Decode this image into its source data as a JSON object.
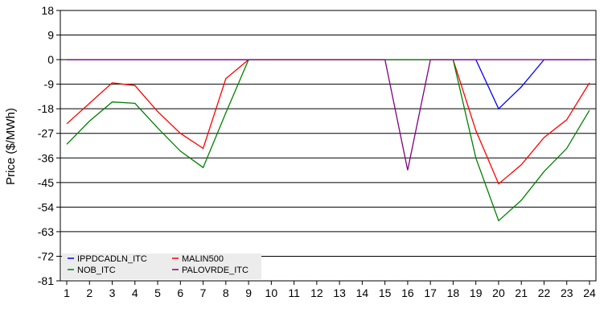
{
  "chart_data": {
    "type": "line",
    "ylabel": "Price ($/MWh)",
    "xlabel": "",
    "x": [
      1,
      2,
      3,
      4,
      5,
      6,
      7,
      8,
      9,
      10,
      11,
      12,
      13,
      14,
      15,
      16,
      17,
      18,
      19,
      20,
      21,
      22,
      23,
      24
    ],
    "xticks": [
      "1",
      "2",
      "3",
      "4",
      "5",
      "6",
      "7",
      "8",
      "9",
      "10",
      "11",
      "12",
      "13",
      "14",
      "15",
      "16",
      "17",
      "18",
      "19",
      "20",
      "21",
      "22",
      "23",
      "24"
    ],
    "ylim": [
      -81,
      18
    ],
    "yticks": [
      18,
      9,
      0,
      -9,
      -18,
      -27,
      -36,
      -45,
      -54,
      -63,
      -72,
      -81
    ],
    "ytick_labels": [
      "18",
      "9",
      "0",
      "-9",
      "-18",
      "-27",
      "-36",
      "-45",
      "-54",
      "-63",
      "-72",
      "-81"
    ],
    "grid": "horizontal",
    "legend_position": "bottom-left",
    "series": [
      {
        "name": "IPPDCADLN_ITC",
        "color": "#0000ff",
        "values": [
          0,
          0,
          0,
          0,
          0,
          0,
          0,
          0,
          0,
          0,
          0,
          0,
          0,
          0,
          0,
          0,
          0,
          0,
          0,
          -18,
          -10,
          0,
          0,
          0
        ]
      },
      {
        "name": "MALIN500",
        "color": "#ff0000",
        "values": [
          -23.5,
          -16,
          -8.5,
          -9.5,
          -19,
          -27,
          -32.5,
          -7,
          0,
          0,
          0,
          0,
          0,
          0,
          0,
          0,
          0,
          0,
          -26,
          -45.5,
          -38.5,
          -28.5,
          -22,
          -8.5
        ]
      },
      {
        "name": "NOB_ITC",
        "color": "#008000",
        "values": [
          -31,
          -22.5,
          -15.5,
          -16,
          -25,
          -33.5,
          -39.5,
          -19.5,
          0,
          0,
          0,
          0,
          0,
          0,
          0,
          0,
          0,
          0,
          -36,
          -59,
          -51.5,
          -41,
          -32.5,
          -18.5
        ]
      },
      {
        "name": "PALOVRDE_ITC",
        "color": "#800080",
        "values": [
          0,
          0,
          0,
          0,
          0,
          0,
          0,
          0,
          0,
          0,
          0,
          0,
          0,
          0,
          0,
          -40.5,
          0,
          0,
          0,
          0,
          0,
          0,
          0,
          0
        ]
      }
    ]
  }
}
